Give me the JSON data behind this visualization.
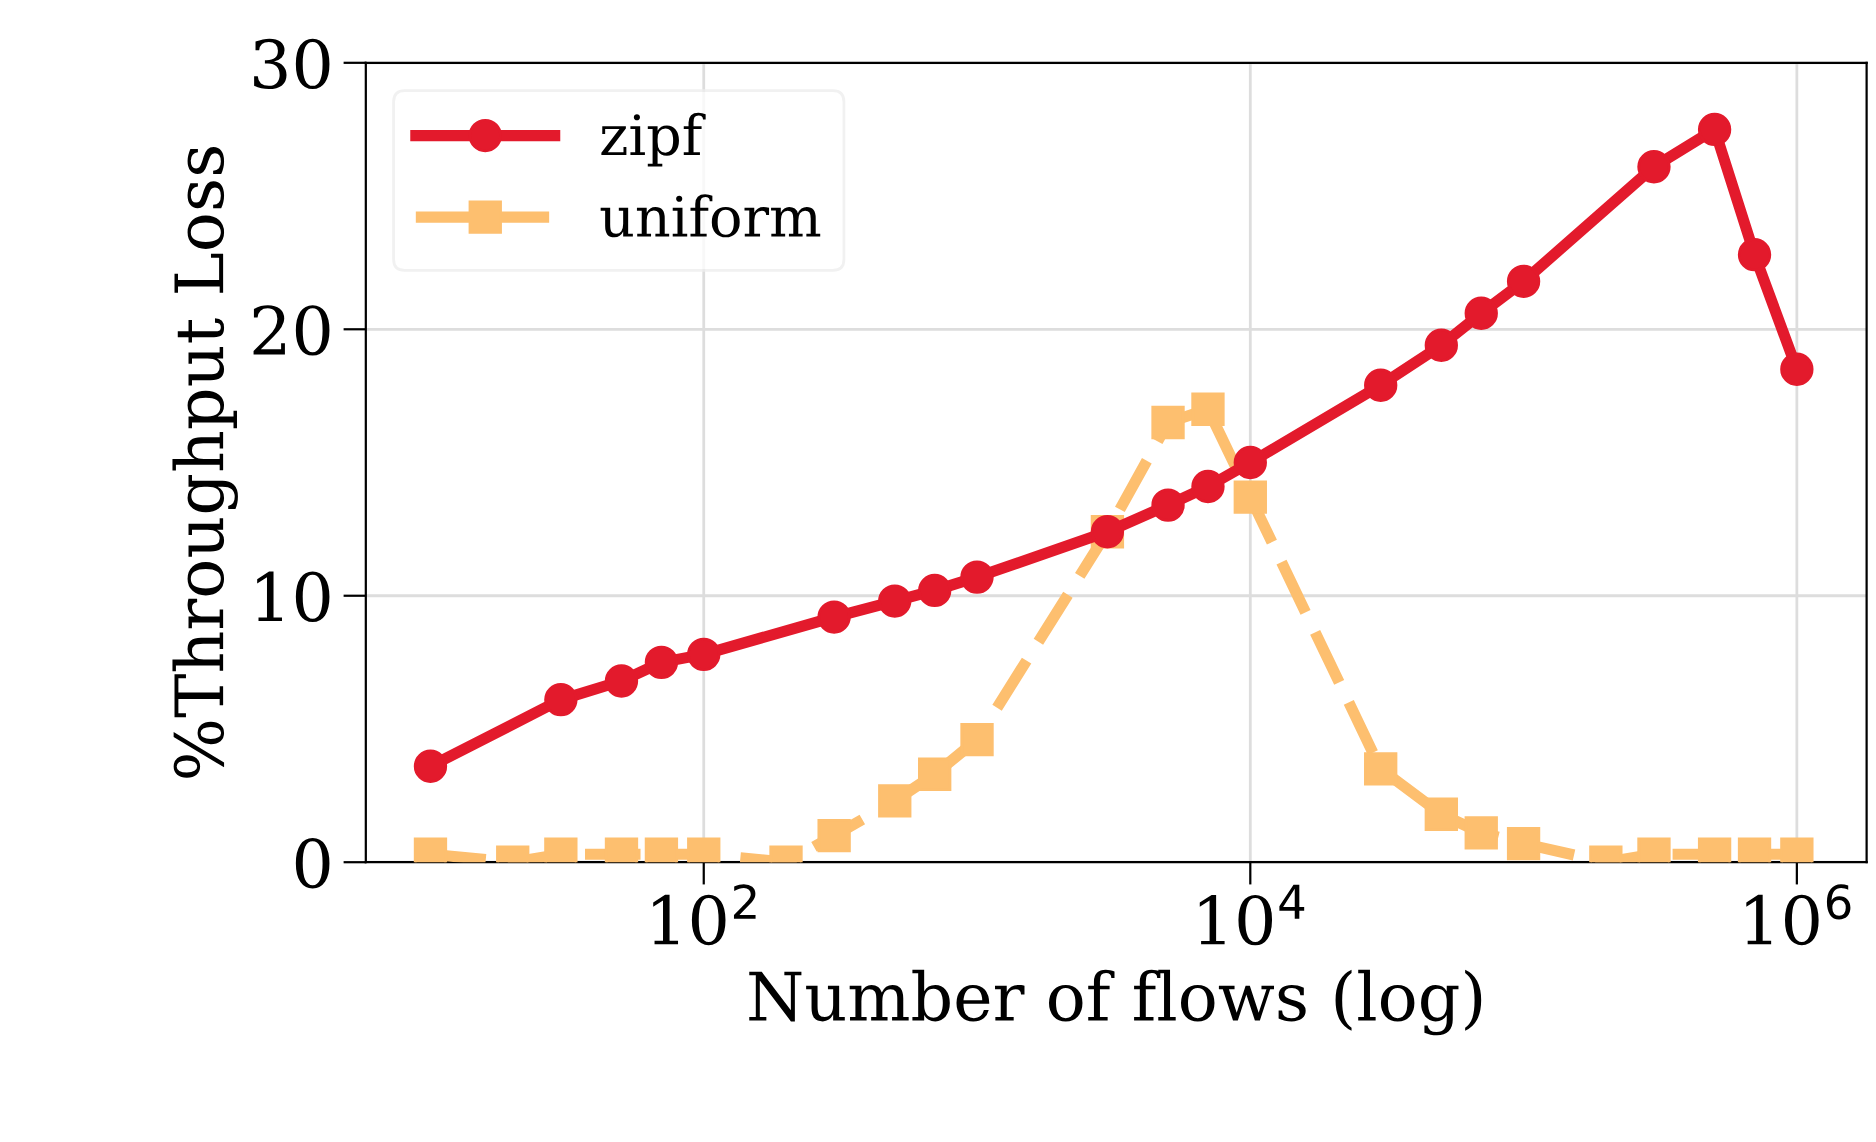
{
  "chart_data": {
    "type": "line",
    "xlabel": "Number of flows (log)",
    "ylabel": "%Throughput Loss",
    "log": "x",
    "xlim": [
      5.8,
      1800000
    ],
    "ylim": [
      0,
      30
    ],
    "xticks": [
      {
        "value": 100,
        "label": "10$^{2}$"
      },
      {
        "value": 10000,
        "label": "10$^{4}$"
      },
      {
        "value": 1000000,
        "label": "10$^{6}$"
      }
    ],
    "yticks": [
      0,
      10,
      20,
      30
    ],
    "grid": true,
    "legend": "top left",
    "series": [
      {
        "name": "zipf",
        "color": "#e31a2c",
        "marker": "circle",
        "line_style": "solid",
        "x": [
          10,
          30,
          50,
          70,
          100,
          300,
          500,
          700,
          1000,
          3000,
          5000,
          7000,
          10000,
          30000,
          50000,
          70000,
          100000,
          300000,
          500000,
          700000,
          1000000
        ],
        "values": [
          3.6,
          6.1,
          6.8,
          7.5,
          7.8,
          9.2,
          9.8,
          10.2,
          10.7,
          12.4,
          13.4,
          14.1,
          15.0,
          17.9,
          19.4,
          20.6,
          21.8,
          26.1,
          27.5,
          22.8,
          18.5
        ]
      },
      {
        "name": "uniform",
        "color": "#fdbf6f",
        "marker": "square",
        "line_style": "dashed",
        "x": [
          10,
          20,
          30,
          50,
          70,
          100,
          200,
          300,
          500,
          700,
          1000,
          3000,
          5000,
          7000,
          10000,
          30000,
          50000,
          70000,
          100000,
          200000,
          300000,
          500000,
          700000,
          1000000
        ],
        "values": [
          0.3,
          0,
          0.3,
          0.3,
          0.3,
          0.3,
          0,
          1.0,
          2.3,
          3.3,
          4.6,
          12.4,
          16.5,
          17,
          13.7,
          3.5,
          1.8,
          1.1,
          0.7,
          0,
          0.3,
          0.3,
          0.3,
          0.3
        ]
      }
    ]
  }
}
